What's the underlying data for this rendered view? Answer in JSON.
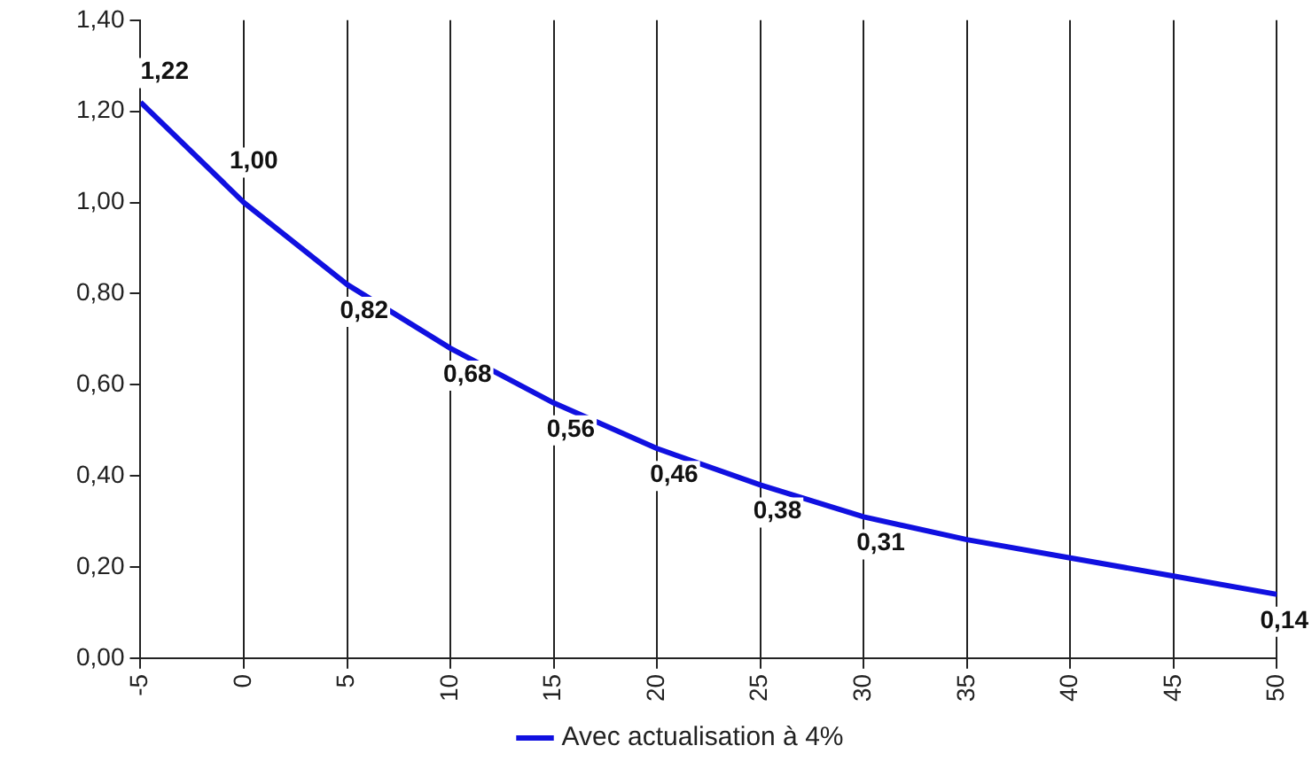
{
  "chart_data": {
    "type": "line",
    "x": [
      -5,
      0,
      5,
      10,
      15,
      20,
      25,
      30,
      35,
      40,
      45,
      50
    ],
    "series": [
      {
        "name": "Avec actualisation à 4%",
        "color": "#1010e0",
        "values": [
          1.22,
          1.0,
          0.82,
          0.68,
          0.56,
          0.46,
          0.38,
          0.31,
          0.26,
          0.22,
          0.18,
          0.14
        ],
        "value_labels": [
          "1,22",
          "1,00",
          "0,82",
          "0,68",
          "0,56",
          "0,46",
          "0,38",
          "0,31",
          null,
          null,
          null,
          "0,14"
        ]
      }
    ],
    "xlim": [
      -5,
      50
    ],
    "xticks": [
      -5,
      0,
      5,
      10,
      15,
      20,
      25,
      30,
      35,
      40,
      45,
      50
    ],
    "ylim": [
      0,
      1.4
    ],
    "yticks": [
      {
        "value": 0,
        "label": "0,00"
      },
      {
        "value": 0.2,
        "label": "0,20"
      },
      {
        "value": 0.4,
        "label": "0,40"
      },
      {
        "value": 0.6,
        "label": "0,60"
      },
      {
        "value": 0.8,
        "label": "0,80"
      },
      {
        "value": 1.0,
        "label": "1,00"
      },
      {
        "value": 1.2,
        "label": "1,20"
      },
      {
        "value": 1.4,
        "label": "1,40"
      }
    ],
    "grid": "x",
    "legend": "bottom",
    "marker": "none",
    "line_style": "solid"
  }
}
